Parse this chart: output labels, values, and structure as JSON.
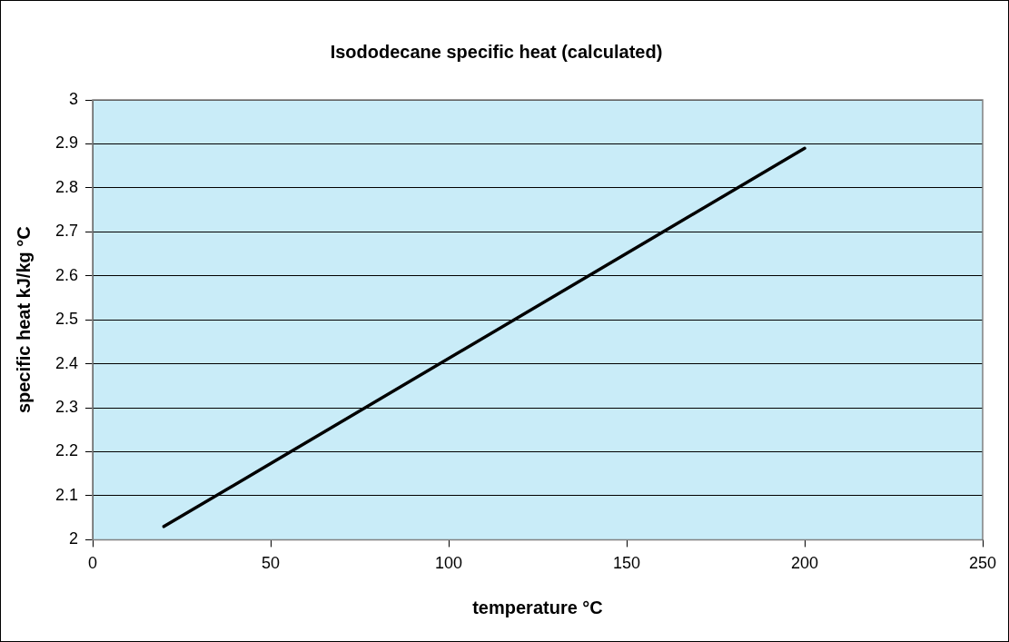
{
  "chart_data": {
    "type": "line",
    "title": "Isododecane specific heat (calculated)",
    "xlabel": "temperature °C",
    "ylabel": "specific heat kJ/kg °C",
    "x": [
      20,
      200
    ],
    "series": [
      {
        "color": "#000000",
        "values": [
          2.03,
          2.89
        ]
      }
    ],
    "xlim": [
      0,
      250
    ],
    "xticks": [
      0,
      50,
      100,
      150,
      200,
      250
    ],
    "ylim": [
      2,
      3
    ],
    "yticks": [
      2,
      2.1,
      2.2,
      2.3,
      2.4,
      2.5,
      2.6,
      2.7,
      2.8,
      2.9,
      3
    ],
    "grid": "y",
    "legend": false,
    "marker": "none",
    "line_style": "solid"
  }
}
